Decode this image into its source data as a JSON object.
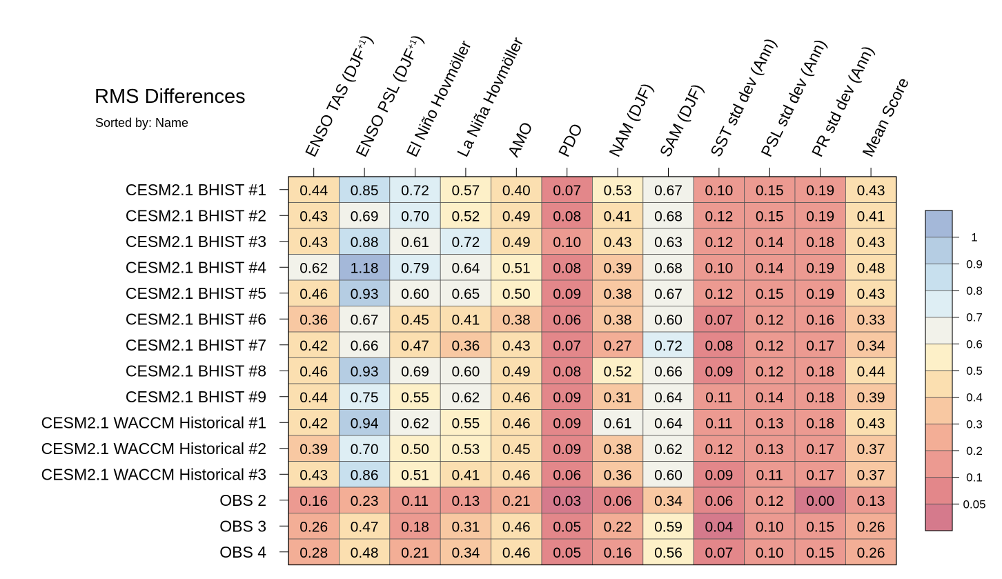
{
  "title": "RMS Differences",
  "subtitle": "Sorted by: Name",
  "chart_data": {
    "type": "heatmap",
    "title": "RMS Differences",
    "subtitle": "Sorted by: Name",
    "columns": [
      {
        "parts": [
          {
            "t": "ENSO TAS (DJF"
          },
          {
            "t": "+1",
            "sup": true
          },
          {
            "t": ")"
          }
        ]
      },
      {
        "parts": [
          {
            "t": "ENSO PSL (DJF"
          },
          {
            "t": "+1",
            "sup": true
          },
          {
            "t": ")"
          }
        ]
      },
      {
        "parts": [
          {
            "t": "El Niño Hovmöller"
          }
        ]
      },
      {
        "parts": [
          {
            "t": "La Niña Hovmöller"
          }
        ]
      },
      {
        "parts": [
          {
            "t": "AMO"
          }
        ]
      },
      {
        "parts": [
          {
            "t": "PDO"
          }
        ]
      },
      {
        "parts": [
          {
            "t": "NAM (DJF)"
          }
        ]
      },
      {
        "parts": [
          {
            "t": "SAM (DJF)"
          }
        ]
      },
      {
        "parts": [
          {
            "t": "SST std dev (Ann)"
          }
        ]
      },
      {
        "parts": [
          {
            "t": "PSL std dev (Ann)"
          }
        ]
      },
      {
        "parts": [
          {
            "t": "PR std dev (Ann)"
          }
        ]
      },
      {
        "parts": [
          {
            "t": "Mean Score"
          }
        ]
      }
    ],
    "rows": [
      {
        "label": "CESM2.1 BHIST #1",
        "values": [
          0.44,
          0.85,
          0.72,
          0.57,
          0.4,
          0.07,
          0.53,
          0.67,
          0.1,
          0.15,
          0.19,
          0.43
        ]
      },
      {
        "label": "CESM2.1 BHIST #2",
        "values": [
          0.43,
          0.69,
          0.7,
          0.52,
          0.49,
          0.08,
          0.41,
          0.68,
          0.12,
          0.15,
          0.19,
          0.41
        ]
      },
      {
        "label": "CESM2.1 BHIST #3",
        "values": [
          0.43,
          0.88,
          0.61,
          0.72,
          0.49,
          0.1,
          0.43,
          0.63,
          0.12,
          0.14,
          0.18,
          0.43
        ]
      },
      {
        "label": "CESM2.1 BHIST #4",
        "values": [
          0.62,
          1.18,
          0.79,
          0.64,
          0.51,
          0.08,
          0.39,
          0.68,
          0.1,
          0.14,
          0.19,
          0.48
        ]
      },
      {
        "label": "CESM2.1 BHIST #5",
        "values": [
          0.46,
          0.93,
          0.6,
          0.65,
          0.5,
          0.09,
          0.38,
          0.67,
          0.12,
          0.15,
          0.19,
          0.43
        ]
      },
      {
        "label": "CESM2.1 BHIST #6",
        "values": [
          0.36,
          0.67,
          0.45,
          0.41,
          0.38,
          0.06,
          0.38,
          0.6,
          0.07,
          0.12,
          0.16,
          0.33
        ]
      },
      {
        "label": "CESM2.1 BHIST #7",
        "values": [
          0.42,
          0.66,
          0.47,
          0.36,
          0.43,
          0.07,
          0.27,
          0.72,
          0.08,
          0.12,
          0.17,
          0.34
        ]
      },
      {
        "label": "CESM2.1 BHIST #8",
        "values": [
          0.46,
          0.93,
          0.69,
          0.6,
          0.49,
          0.08,
          0.52,
          0.66,
          0.09,
          0.12,
          0.18,
          0.44
        ]
      },
      {
        "label": "CESM2.1 BHIST #9",
        "values": [
          0.44,
          0.75,
          0.55,
          0.62,
          0.46,
          0.09,
          0.31,
          0.64,
          0.11,
          0.14,
          0.18,
          0.39
        ]
      },
      {
        "label": "CESM2.1 WACCM Historical #1",
        "values": [
          0.42,
          0.94,
          0.62,
          0.55,
          0.46,
          0.09,
          0.61,
          0.64,
          0.11,
          0.13,
          0.18,
          0.43
        ]
      },
      {
        "label": "CESM2.1 WACCM Historical #2",
        "values": [
          0.39,
          0.7,
          0.5,
          0.53,
          0.45,
          0.09,
          0.38,
          0.62,
          0.12,
          0.13,
          0.17,
          0.37
        ]
      },
      {
        "label": "CESM2.1 WACCM Historical #3",
        "values": [
          0.43,
          0.86,
          0.51,
          0.41,
          0.46,
          0.06,
          0.36,
          0.6,
          0.09,
          0.11,
          0.17,
          0.37
        ]
      },
      {
        "label": "OBS 2",
        "values": [
          0.16,
          0.23,
          0.11,
          0.13,
          0.21,
          0.03,
          0.06,
          0.34,
          0.06,
          0.12,
          0.0,
          0.13
        ]
      },
      {
        "label": "OBS 3",
        "values": [
          0.26,
          0.47,
          0.18,
          0.31,
          0.46,
          0.05,
          0.22,
          0.59,
          0.04,
          0.1,
          0.15,
          0.26
        ]
      },
      {
        "label": "OBS 4",
        "values": [
          0.28,
          0.48,
          0.21,
          0.34,
          0.46,
          0.05,
          0.16,
          0.56,
          0.07,
          0.1,
          0.15,
          0.26
        ]
      }
    ],
    "colorbar": {
      "levels": [
        0.05,
        0.1,
        0.2,
        0.3,
        0.4,
        0.5,
        0.6,
        0.7,
        0.8,
        0.9,
        1
      ],
      "labels": [
        "1",
        "0.9",
        "0.8",
        "0.7",
        "0.6",
        "0.5",
        "0.4",
        "0.3",
        "0.2",
        "0.1",
        "0.05"
      ],
      "colors": [
        "#d57a8c",
        "#e3878a",
        "#ec9a91",
        "#f3ae96",
        "#f8c8a2",
        "#fbdfb0",
        "#fdf0c8",
        "#f2f2ea",
        "#deeef4",
        "#c8e0ee",
        "#b5cde3",
        "#a4b8d9"
      ]
    }
  }
}
